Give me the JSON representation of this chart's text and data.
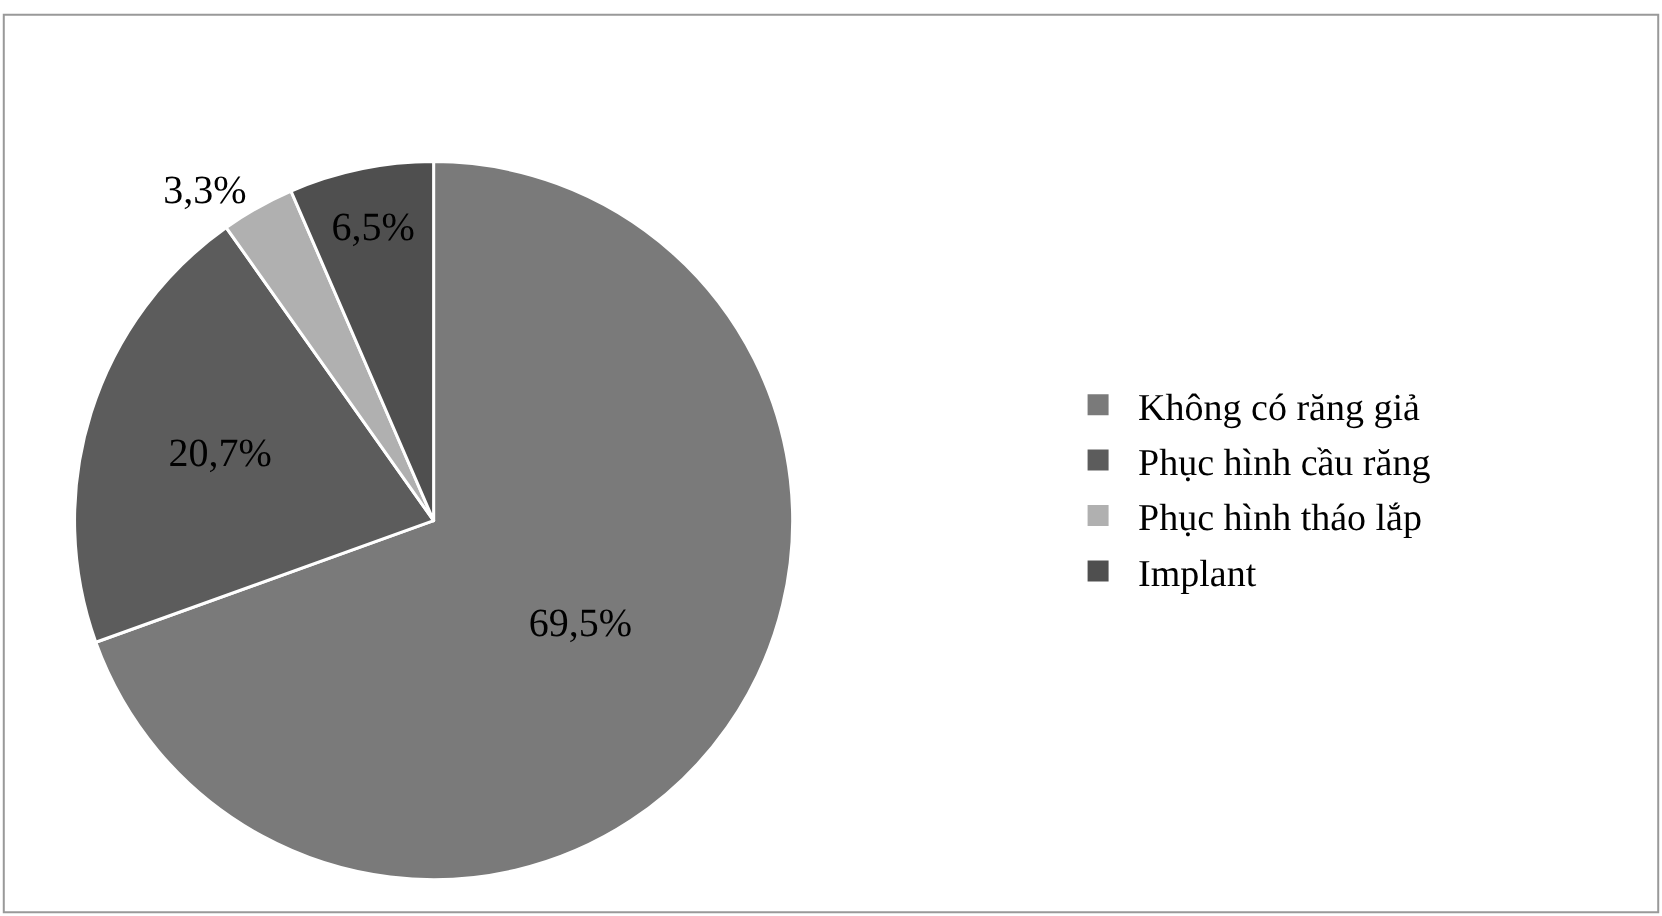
{
  "chart_data": {
    "type": "pie",
    "categories": [
      "Không có răng giả",
      "Phục hình cầu răng",
      "Phục hình tháo lắp",
      "Implant"
    ],
    "values": [
      69.5,
      20.7,
      3.3,
      6.5
    ],
    "colors": [
      "#7a7a7a",
      "#5c5c5c",
      "#b0b0b0",
      "#4f4f4f"
    ],
    "value_labels": [
      "69,5%",
      "20,7%",
      "3,3%",
      "6,5%"
    ],
    "legend": "right"
  }
}
